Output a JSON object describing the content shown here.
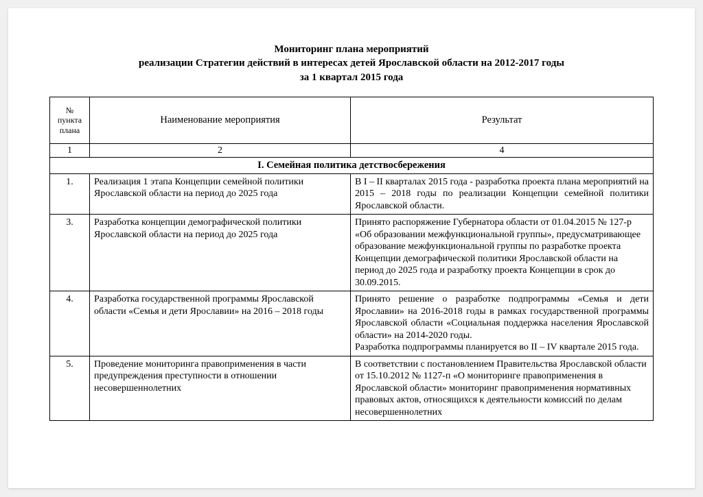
{
  "title": {
    "line1": "Мониторинг плана мероприятий",
    "line2": "реализации Стратегии действий в интересах детей Ярославской области на 2012-2017 годы",
    "line3": "за 1 квартал 2015 года"
  },
  "table": {
    "columns": {
      "num_header_l1": "№",
      "num_header_l2": "пункта",
      "num_header_l3": "плана",
      "name_header": "Наименование мероприятия",
      "result_header": "Результат",
      "num_header_idx": "1",
      "name_header_idx": "2",
      "result_header_idx": "4"
    },
    "section_heading": "I. Семейная политика детствосбережения",
    "rows": [
      {
        "num": "1.",
        "name": "Реализация 1 этапа Концепции семейной политики Ярославской области на период до 2025 года",
        "result": "В  I  –  II  кварталах  2015  года    -  разработка  проекта  плана мероприятий  на  2015  –  2018  годы  по  реализации  Концепции семейной политики Ярославской области.",
        "result_justify": true
      },
      {
        "num": "3.",
        "name": "Разработка концепции демографической политики Ярославской области на период до 2025 года",
        "result": "Принято распоряжение Губернатора области от 01.04.2015 № 127-р «Об образовании межфункциональной группы», предусматривающее образование межфункциональной группы по разработке проекта Концепции демографической политики Ярославской области на период до 2025 года и разработку проекта Концепции в срок до 30.09.2015.",
        "result_justify": false
      },
      {
        "num": "4.",
        "name": "Разработка государственной программы Ярославской области «Семья и дети Ярославии» на 2016 – 2018 годы",
        "result": "Принято  решение  о  разработке  подпрограммы  «Семья  и  дети Ярославии»  на  2016-2018  годы  в  рамках  государственной программы  Ярославской  области  «Социальная  поддержка населения Ярославской области» на 2014-2020 годы.\nРазработка  подпрограммы  планируется  во  II  –  IV  квартале 2015 года.",
        "result_justify": true
      },
      {
        "num": "5.",
        "name": "Проведение мониторинга правоприменения в части предупреждения преступности в отношении несовершеннолетних",
        "result": "В соответствии с постановлением Правительства Ярославской области от 15.10.2012  № 1127-п «О мониторинге правоприменения в Ярославской области» мониторинг правоприменения нормативных правовых актов, относящихся к деятельности комиссий по делам несовершеннолетних",
        "result_justify": false
      }
    ]
  },
  "style": {
    "page_bg": "#ffffff",
    "outer_bg": "#f0f0f0",
    "border_color": "#000000",
    "font_family": "Times New Roman",
    "title_fontsize_pt": 12,
    "body_fontsize_pt": 11
  }
}
